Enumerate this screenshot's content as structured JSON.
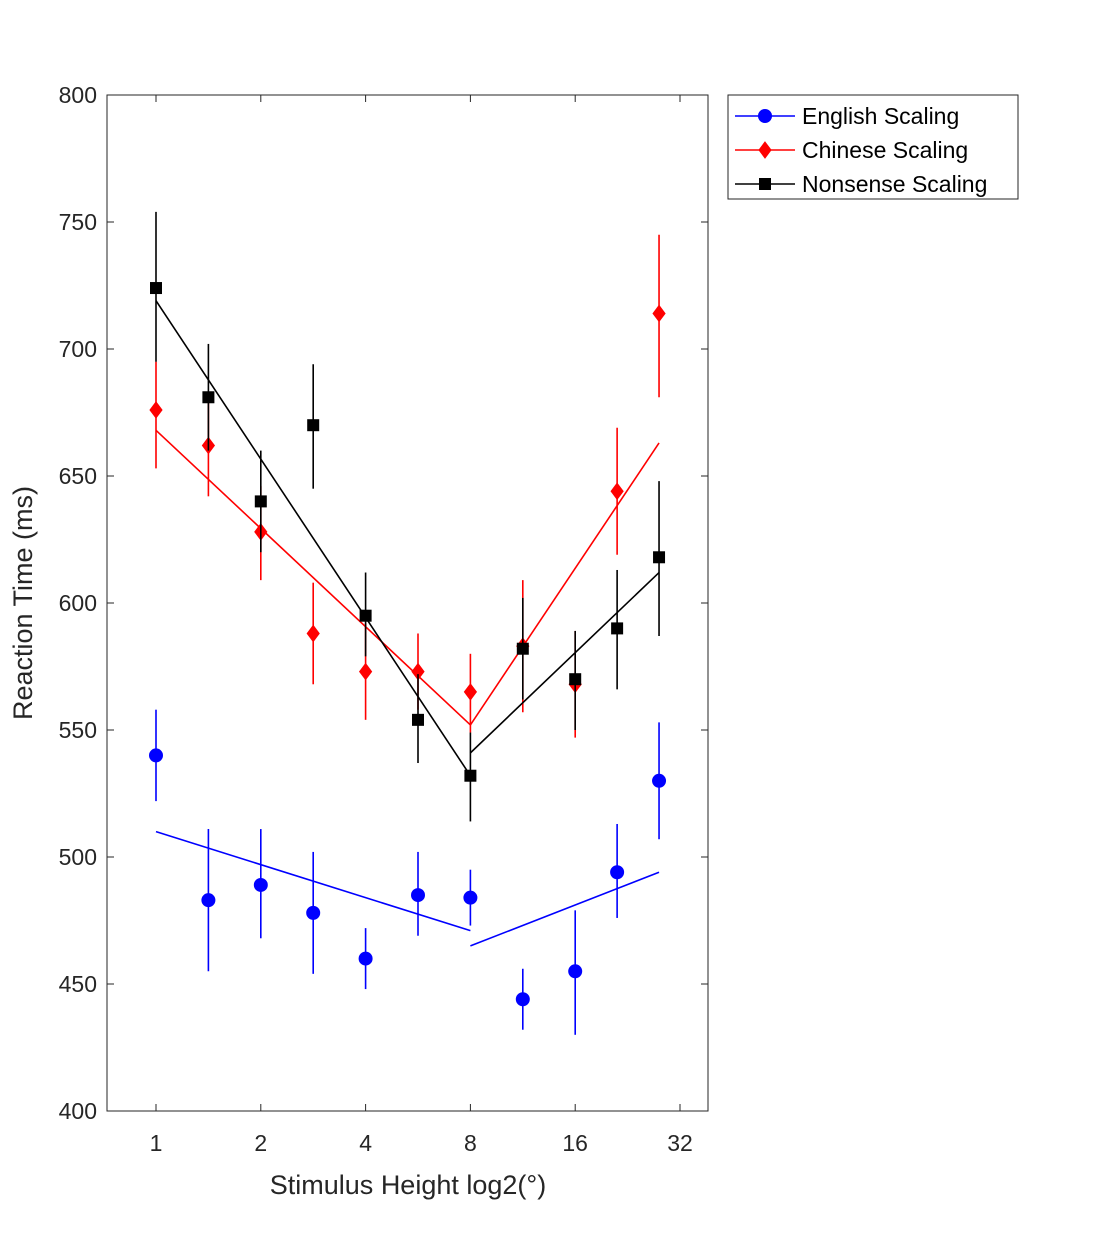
{
  "chart_data": {
    "type": "scatter",
    "title": "",
    "xlabel": "Stimulus Height log2(°)",
    "ylabel": "Reaction Time (ms)",
    "xscale": "log2",
    "xlim": [
      0,
      5.5
    ],
    "ylim": [
      400,
      800
    ],
    "xticks": [
      {
        "value": 0,
        "label": "1"
      },
      {
        "value": 1,
        "label": "2"
      },
      {
        "value": 2,
        "label": "4"
      },
      {
        "value": 3,
        "label": "8"
      },
      {
        "value": 4,
        "label": "16"
      },
      {
        "value": 5,
        "label": "32"
      }
    ],
    "yticks": [
      400,
      450,
      500,
      550,
      600,
      650,
      700,
      750,
      800
    ],
    "legend_position": "outside-top-right",
    "series": [
      {
        "name": "English Scaling",
        "color": "#0000ff",
        "marker": "circle",
        "points": [
          {
            "x": 0.0,
            "y": 540,
            "err_low": 522,
            "err_high": 558
          },
          {
            "x": 0.5,
            "y": 483,
            "err_low": 455,
            "err_high": 511
          },
          {
            "x": 1.0,
            "y": 489,
            "err_low": 468,
            "err_high": 511
          },
          {
            "x": 1.5,
            "y": 478,
            "err_low": 454,
            "err_high": 502
          },
          {
            "x": 2.0,
            "y": 460,
            "err_low": 448,
            "err_high": 472
          },
          {
            "x": 2.5,
            "y": 485,
            "err_low": 469,
            "err_high": 502
          },
          {
            "x": 3.0,
            "y": 484,
            "err_low": 473,
            "err_high": 495
          },
          {
            "x": 3.5,
            "y": 444,
            "err_low": 432,
            "err_high": 456
          },
          {
            "x": 4.0,
            "y": 455,
            "err_low": 430,
            "err_high": 479
          },
          {
            "x": 4.4,
            "y": 494,
            "err_low": 476,
            "err_high": 513
          },
          {
            "x": 4.8,
            "y": 530,
            "err_low": 507,
            "err_high": 553
          }
        ],
        "fit_segments": [
          [
            {
              "x": 0.0,
              "y": 510
            },
            {
              "x": 3.0,
              "y": 471
            }
          ],
          [
            {
              "x": 3.0,
              "y": 465
            },
            {
              "x": 4.8,
              "y": 494
            }
          ]
        ]
      },
      {
        "name": "Chinese Scaling",
        "color": "#ff0000",
        "marker": "diamond",
        "points": [
          {
            "x": 0.0,
            "y": 676,
            "err_low": 653,
            "err_high": 695
          },
          {
            "x": 0.5,
            "y": 662,
            "err_low": 642,
            "err_high": 682
          },
          {
            "x": 1.0,
            "y": 628,
            "err_low": 609,
            "err_high": 646
          },
          {
            "x": 1.5,
            "y": 588,
            "err_low": 568,
            "err_high": 608
          },
          {
            "x": 2.0,
            "y": 573,
            "err_low": 554,
            "err_high": 592
          },
          {
            "x": 2.5,
            "y": 573,
            "err_low": 558,
            "err_high": 588
          },
          {
            "x": 3.0,
            "y": 565,
            "err_low": 549,
            "err_high": 580
          },
          {
            "x": 3.5,
            "y": 583,
            "err_low": 557,
            "err_high": 609
          },
          {
            "x": 4.0,
            "y": 568,
            "err_low": 547,
            "err_high": 589
          },
          {
            "x": 4.4,
            "y": 644,
            "err_low": 619,
            "err_high": 669
          },
          {
            "x": 4.8,
            "y": 714,
            "err_low": 681,
            "err_high": 745
          }
        ],
        "fit_segments": [
          [
            {
              "x": 0.0,
              "y": 668
            },
            {
              "x": 3.0,
              "y": 552
            }
          ],
          [
            {
              "x": 3.0,
              "y": 552
            },
            {
              "x": 4.8,
              "y": 663
            }
          ]
        ]
      },
      {
        "name": "Nonsense Scaling",
        "color": "#000000",
        "marker": "square",
        "points": [
          {
            "x": 0.0,
            "y": 724,
            "err_low": 695,
            "err_high": 754
          },
          {
            "x": 0.5,
            "y": 681,
            "err_low": 660,
            "err_high": 702
          },
          {
            "x": 1.0,
            "y": 640,
            "err_low": 620,
            "err_high": 660
          },
          {
            "x": 1.5,
            "y": 670,
            "err_low": 645,
            "err_high": 694
          },
          {
            "x": 2.0,
            "y": 595,
            "err_low": 579,
            "err_high": 612
          },
          {
            "x": 2.5,
            "y": 554,
            "err_low": 537,
            "err_high": 572
          },
          {
            "x": 3.0,
            "y": 532,
            "err_low": 514,
            "err_high": 549
          },
          {
            "x": 3.5,
            "y": 582,
            "err_low": 562,
            "err_high": 602
          },
          {
            "x": 4.0,
            "y": 570,
            "err_low": 550,
            "err_high": 589
          },
          {
            "x": 4.4,
            "y": 590,
            "err_low": 566,
            "err_high": 613
          },
          {
            "x": 4.8,
            "y": 618,
            "err_low": 587,
            "err_high": 648
          }
        ],
        "fit_segments": [
          [
            {
              "x": 0.0,
              "y": 719
            },
            {
              "x": 3.0,
              "y": 532
            }
          ],
          [
            {
              "x": 3.0,
              "y": 541
            },
            {
              "x": 4.8,
              "y": 612
            }
          ]
        ]
      }
    ]
  }
}
